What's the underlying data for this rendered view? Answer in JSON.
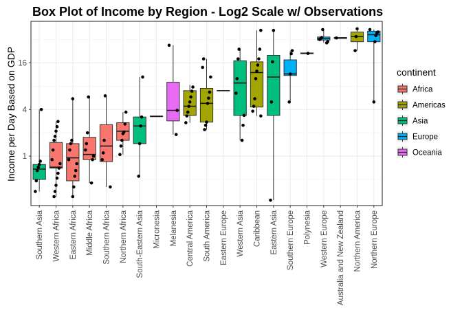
{
  "chart_data": {
    "type": "box",
    "title": "Box Plot of Income by Region - Log2 Scale w/ Observations",
    "xlabel": "",
    "ylabel": "Income per Day Based on GDP",
    "y_scale": "log2",
    "ylim": [
      0.23,
      55
    ],
    "y_ticks": [
      {
        "value": 1,
        "label": "1"
      },
      {
        "value": 4,
        "label": "4"
      },
      {
        "value": 16,
        "label": "16"
      }
    ],
    "grid": true,
    "legend": {
      "title": "continent",
      "position": "right",
      "items": [
        {
          "name": "Africa",
          "color": "#F8766D"
        },
        {
          "name": "Americas",
          "color": "#A3A500"
        },
        {
          "name": "Asia",
          "color": "#00BF7D"
        },
        {
          "name": "Europe",
          "color": "#00B0F6"
        },
        {
          "name": "Oceania",
          "color": "#E76BF3"
        }
      ]
    },
    "categories": [
      {
        "region": "Southern Asia",
        "continent": "Asia",
        "min": 0.35,
        "q1": 0.5,
        "median": 0.68,
        "q3": 0.78,
        "max": 4.0,
        "points": [
          0.35,
          0.48,
          0.65,
          0.72,
          0.78,
          0.86,
          4.0
        ]
      },
      {
        "region": "Western Africa",
        "continent": "Africa",
        "min": 0.3,
        "q1": 0.7,
        "median": 0.72,
        "q3": 1.5,
        "max": 2.8,
        "points": [
          0.3,
          0.35,
          0.42,
          0.52,
          0.6,
          0.7,
          0.8,
          0.9,
          1.2,
          1.6,
          1.8,
          2.1,
          2.4,
          2.8
        ]
      },
      {
        "region": "Eastern Africa",
        "continent": "Africa",
        "min": 0.3,
        "q1": 0.48,
        "median": 0.95,
        "q3": 1.45,
        "max": 5.5,
        "points": [
          0.3,
          0.4,
          0.55,
          0.65,
          0.8,
          0.9,
          1.2,
          1.45,
          1.6,
          5.5
        ]
      },
      {
        "region": "Middle Africa",
        "continent": "Africa",
        "min": 0.45,
        "q1": 0.9,
        "median": 1.05,
        "q3": 1.75,
        "max": 5.8,
        "points": [
          0.45,
          0.9,
          1.0,
          1.2,
          1.45,
          2.0,
          5.8
        ]
      },
      {
        "region": "Southern Africa",
        "continent": "Africa",
        "min": 0.4,
        "q1": 0.85,
        "median": 1.35,
        "q3": 2.55,
        "max": 6.0,
        "points": [
          0.4,
          0.9,
          1.1,
          1.6,
          6.0
        ]
      },
      {
        "region": "Northern Africa",
        "continent": "Africa",
        "min": 1.05,
        "q1": 1.6,
        "median": 2.1,
        "q3": 2.7,
        "max": 3.7,
        "points": [
          1.05,
          1.35,
          1.6,
          1.95,
          2.05,
          2.6,
          3.7
        ]
      },
      {
        "region": "South-Eastern Asia",
        "continent": "Asia",
        "min": 0.55,
        "q1": 1.45,
        "median": 2.45,
        "q3": 3.2,
        "max": 10.5,
        "points": [
          0.55,
          1.45,
          2.45,
          3.2,
          10.5
        ]
      },
      {
        "region": "Micronesia",
        "continent": "Oceania",
        "min": 3.25,
        "q1": 3.25,
        "median": 3.25,
        "q3": 3.3,
        "max": 3.3,
        "points": []
      },
      {
        "region": "Melanesia",
        "continent": "Oceania",
        "min": 1.9,
        "q1": 2.85,
        "median": 3.9,
        "q3": 9.0,
        "max": 27,
        "points": [
          1.9,
          3.9,
          27
        ]
      },
      {
        "region": "Central America",
        "continent": "Americas",
        "min": 2.7,
        "q1": 3.35,
        "median": 4.4,
        "q3": 7.0,
        "max": 8.3,
        "points": [
          2.7,
          3.3,
          3.7,
          4.4,
          5.0,
          5.8,
          6.9,
          7.8
        ]
      },
      {
        "region": "South America",
        "continent": "Americas",
        "min": 2.2,
        "q1": 2.75,
        "median": 4.8,
        "q3": 7.5,
        "max": 18,
        "points": [
          2.2,
          2.5,
          2.75,
          4.8,
          5.6,
          6.7,
          10.5,
          14,
          18
        ]
      },
      {
        "region": "Eastern Europe",
        "continent": "Europe",
        "min": 7.0,
        "q1": 7.0,
        "median": 7.0,
        "q3": 7.05,
        "max": 7.05,
        "points": []
      },
      {
        "region": "Western Asia",
        "continent": "Asia",
        "min": 1.6,
        "q1": 3.35,
        "median": 8.8,
        "q3": 17,
        "max": 24,
        "points": [
          1.6,
          2.5,
          3.35,
          6.5,
          10.0,
          18,
          24
        ]
      },
      {
        "region": "Caribbean",
        "continent": "Americas",
        "min": 3.3,
        "q1": 4.3,
        "median": 12,
        "q3": 16.5,
        "max": 42,
        "points": [
          3.3,
          3.8,
          4.4,
          5.5,
          10,
          12.5,
          15,
          18,
          24,
          42
        ]
      },
      {
        "region": "Eastern Asia",
        "continent": "Asia",
        "min": 0.27,
        "q1": 3.35,
        "median": 10.5,
        "q3": 20,
        "max": 42,
        "points": [
          0.27,
          5.0,
          16.5,
          42
        ]
      },
      {
        "region": "Southern Europe",
        "continent": "Europe",
        "min": 5.0,
        "q1": 11,
        "median": 11.5,
        "q3": 17.5,
        "max": 23,
        "points": [
          5.0,
          11.5,
          21,
          23
        ]
      },
      {
        "region": "Polynesia",
        "continent": "Oceania",
        "min": 21,
        "q1": 21,
        "median": 21.2,
        "q3": 21.5,
        "max": 21.5,
        "points": [
          21.2
        ]
      },
      {
        "region": "Western Europe",
        "continent": "Europe",
        "min": 29,
        "q1": 31.5,
        "median": 33,
        "q3": 34.5,
        "max": 43,
        "points": [
          29,
          30,
          32,
          33,
          34,
          43
        ]
      },
      {
        "region": "Australia and New Zealand",
        "continent": "Oceania",
        "min": 33,
        "q1": 33,
        "median": 33.5,
        "q3": 34,
        "max": 34,
        "points": [
          33.5
        ]
      },
      {
        "region": "Northern America",
        "continent": "Americas",
        "min": 23,
        "q1": 30,
        "median": 35,
        "q3": 40,
        "max": 44,
        "points": [
          23,
          35,
          44
        ]
      },
      {
        "region": "Northern Europe",
        "continent": "Europe",
        "min": 5.0,
        "q1": 30,
        "median": 37,
        "q3": 41,
        "max": 43,
        "points": [
          5.0,
          30,
          36,
          39,
          40,
          43
        ]
      }
    ]
  }
}
